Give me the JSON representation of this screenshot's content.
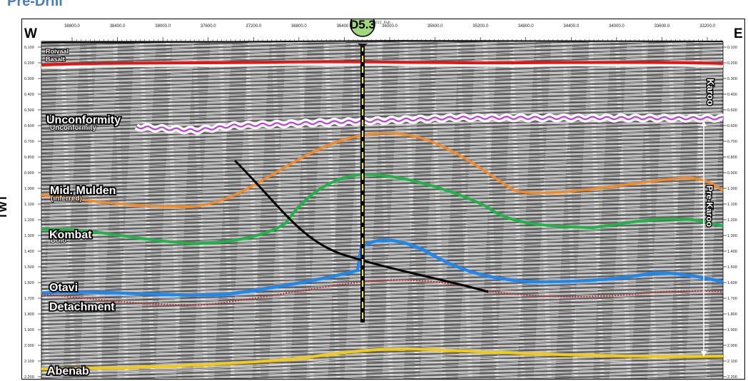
{
  "title": "Pre-Drill",
  "line_name": "- Ali_KB22-012_Full -",
  "well_label": "D5.3",
  "direction": {
    "west": "W",
    "east": "E"
  },
  "vertical_axis_label": "TWT",
  "shotpoint_ticks": [
    "38800.0",
    "38400.0",
    "38000.0",
    "37600.0",
    "37200.0",
    "36800.0",
    "36400.0",
    "36000.0",
    "35600.0",
    "35200.0",
    "34800.0",
    "34400.0",
    "34000.0",
    "33600.0",
    "33200.0"
  ],
  "time_ticks": [
    "0.100",
    "0.200",
    "0.300",
    "0.400",
    "0.500",
    "0.600",
    "0.700",
    "0.800",
    "0.900",
    "1.000",
    "1.100",
    "1.200",
    "1.300",
    "1.400",
    "1.500",
    "1.600",
    "1.700",
    "1.800",
    "1.900",
    "2.000",
    "2.100",
    "2.200"
  ],
  "horizons": [
    {
      "name": "roivaal",
      "label": "Roivaal",
      "label2": "Basalt",
      "color": "#ee1111"
    },
    {
      "name": "unconformity",
      "label": "Unconformity",
      "ghost": "Unconformity",
      "color": "#c040d8"
    },
    {
      "name": "mid-mulden",
      "label": "Mid. Mulden",
      "ghost": "(inferred)",
      "color": "#f08a2a"
    },
    {
      "name": "kombat",
      "label": "Kombat",
      "ghost": "Dolo",
      "color": "#22b24a"
    },
    {
      "name": "otavi",
      "label": "Otavi",
      "color": "#1e88ee"
    },
    {
      "name": "detachment",
      "label": "Detachment",
      "color": "#cc2a2a"
    },
    {
      "name": "abenab",
      "label": "Abenab",
      "color": "#f2cc12"
    }
  ],
  "intervals": {
    "karoo": "Karoo",
    "pre_karoo": "Pre-Karoo"
  }
}
